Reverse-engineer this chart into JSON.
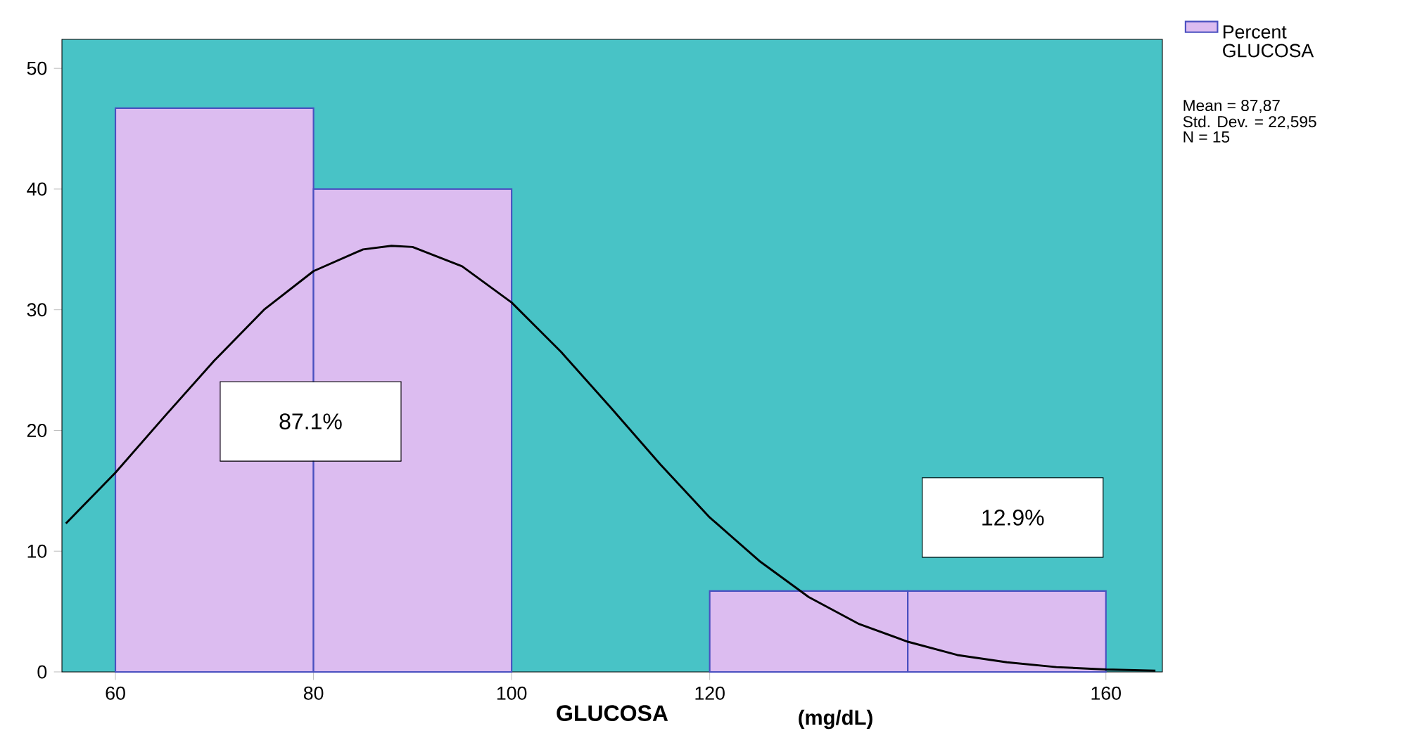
{
  "chart_data": {
    "type": "histogram",
    "xlabel": "GLUCOSA",
    "xlim": [
      54.6,
      165.7
    ],
    "ylim": [
      0,
      52.4
    ],
    "xticks": [
      60,
      80,
      100,
      120,
      160
    ],
    "yticks": [
      0,
      10,
      20,
      30,
      40,
      50
    ],
    "legend": "top right",
    "series": [
      {
        "name": "Percent GLUCOSA",
        "color": "#dcbcf0",
        "bins": [
          60,
          80,
          100,
          120,
          140,
          160
        ],
        "values": [
          46.7,
          40,
          0,
          6.7,
          6.7
        ]
      },
      {
        "type": "line",
        "color": "#000000",
        "x": [
          55,
          60,
          65,
          70,
          75,
          80,
          85,
          87.87,
          90,
          95,
          100,
          105,
          110,
          115,
          120,
          125,
          130,
          135,
          140,
          145,
          150,
          155,
          160,
          165
        ],
        "values": [
          12.3,
          16.5,
          21.2,
          25.8,
          30.0,
          33.2,
          35.0,
          35.3,
          35.2,
          33.6,
          30.6,
          26.5,
          21.9,
          17.2,
          12.8,
          9.2,
          6.2,
          4.0,
          2.5,
          1.4,
          0.8,
          0.4,
          0.2,
          0.1
        ]
      }
    ],
    "annotations": [
      "Mean = 87,87",
      "Std. Dev. = 22,595",
      "N = 15",
      "87.1%",
      "12.9%",
      "(mg/dL)"
    ]
  }
}
